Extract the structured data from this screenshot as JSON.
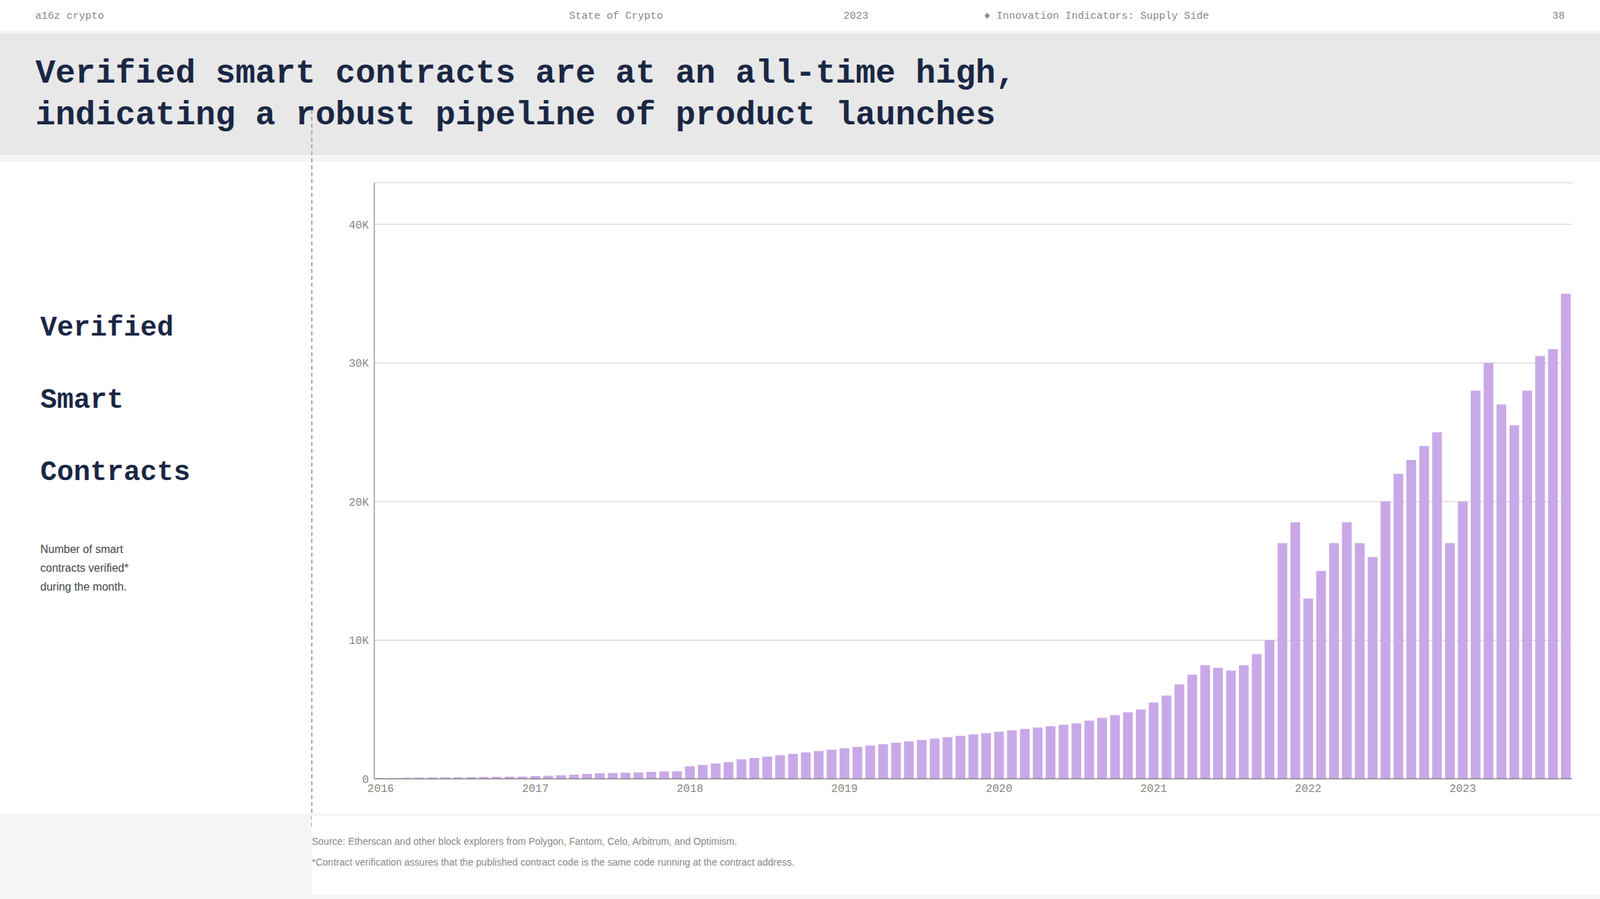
{
  "chart_data": {
    "type": "bar",
    "title": "Verified smart contracts are at an all-time high,\nindicating a robust pipeline of product launches",
    "annotations": [
      "a16z crypto",
      "State of Crypto",
      "2023",
      "♦  Innovation Indicators: Supply Side",
      "38",
      "Verified\nSmart\nContracts",
      "Number of smart\ncontracts verified*\nduring the month.",
      "Source: Etherscan and other block explorers from Polygon, Fantom, Celo, Arbitrum, and Optimism.",
      "*Contract verification assures that the published contract code is the same code running at the contract address."
    ],
    "categories": [
      "2016",
      null,
      null,
      null,
      null,
      null,
      null,
      null,
      null,
      null,
      null,
      null,
      "2017",
      null,
      null,
      null,
      null,
      null,
      null,
      null,
      null,
      null,
      null,
      null,
      "2018",
      null,
      null,
      null,
      null,
      null,
      null,
      null,
      null,
      null,
      null,
      null,
      "2019",
      null,
      null,
      null,
      null,
      null,
      null,
      null,
      null,
      null,
      null,
      null,
      "2020",
      null,
      null,
      null,
      null,
      null,
      null,
      null,
      null,
      null,
      null,
      null,
      "2021",
      null,
      null,
      null,
      null,
      null,
      null,
      null,
      null,
      null,
      null,
      null,
      "2022",
      null,
      null,
      null,
      null,
      null,
      null,
      null,
      null,
      null,
      null,
      null,
      "2023",
      null,
      null,
      null,
      null,
      null,
      null,
      null,
      null
    ],
    "values": [
      50,
      60,
      70,
      80,
      90,
      100,
      110,
      120,
      130,
      140,
      150,
      160,
      200,
      220,
      250,
      300,
      350,
      400,
      420,
      440,
      460,
      500,
      520,
      540,
      900,
      1000,
      1100,
      1200,
      1400,
      1500,
      1600,
      1700,
      1800,
      1900,
      2000,
      2100,
      2200,
      2300,
      2400,
      2500,
      2600,
      2700,
      2800,
      2900,
      3000,
      3100,
      3200,
      3300,
      3400,
      3500,
      3600,
      3700,
      3800,
      3900,
      4000,
      4200,
      4400,
      4600,
      4800,
      5000,
      5500,
      6000,
      6800,
      7500,
      8200,
      8000,
      7800,
      8200,
      9000,
      10000,
      17000,
      18500,
      13000,
      15000,
      17000,
      18500,
      17000,
      16000,
      20000,
      22000,
      23000,
      24000,
      25000,
      17000,
      20000,
      28000,
      30000,
      27000,
      25500,
      28000,
      30500,
      31000,
      35000
    ],
    "color": "#c9a8e8",
    "ylim": [
      0,
      43000
    ],
    "yticks": [
      0,
      {
        "value": 10000,
        "label": "10K"
      },
      {
        "value": 20000,
        "label": "20K"
      },
      {
        "value": 30000,
        "label": "30K"
      },
      {
        "value": 40000,
        "label": "40K"
      }
    ],
    "grid": true
  }
}
